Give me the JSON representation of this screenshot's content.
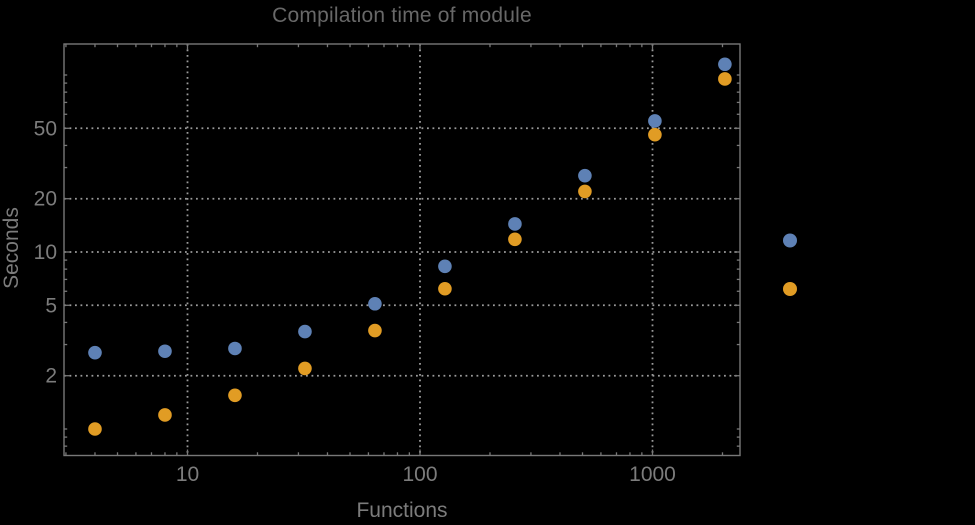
{
  "title": "Compilation time of module",
  "colors": {
    "background": "#000000",
    "title_text": "#686868",
    "axis_label_text": "#7c7c7c",
    "tick_label_text": "#7c7c7c",
    "frame": "#787878",
    "gridline": "#9b9b9b",
    "series_blue": "#5E81B5",
    "series_orange": "#E19C24"
  },
  "chart_data": {
    "type": "scatter",
    "title": "Compilation time of module",
    "xlabel": "Functions",
    "ylabel": "Seconds",
    "xscale": "log",
    "yscale": "log",
    "xlim": [
      2.9,
      2380
    ],
    "ylim": [
      0.72,
      150
    ],
    "grid": {
      "style": "dotted",
      "x_lines": [
        10,
        100,
        1000
      ],
      "y_lines": [
        2,
        5,
        10,
        20,
        50
      ]
    },
    "x_major_ticks": [
      10,
      100,
      1000
    ],
    "x_tick_labels": [
      "10",
      "100",
      "1000"
    ],
    "x_minor_ticks": [
      3,
      4,
      5,
      6,
      7,
      8,
      9,
      20,
      30,
      40,
      50,
      60,
      70,
      80,
      90,
      200,
      300,
      400,
      500,
      600,
      700,
      800,
      900,
      2000
    ],
    "y_major_ticks": [
      2,
      5,
      10,
      20,
      50
    ],
    "y_tick_labels": [
      "2",
      "5",
      "10",
      "20",
      "50"
    ],
    "y_minor_ticks": [
      0.8,
      0.9,
      1,
      3,
      4,
      6,
      7,
      8,
      9,
      30,
      40,
      60,
      70,
      80,
      90,
      100
    ],
    "x": [
      4,
      8,
      16,
      32,
      64,
      128,
      256,
      512,
      1024,
      2048
    ],
    "series": [
      {
        "name": "series-1-blue",
        "marker": "disk",
        "color": "#5E81B5",
        "values": [
          2.7,
          2.75,
          2.85,
          3.55,
          5.1,
          8.3,
          14.4,
          27,
          55,
          115
        ]
      },
      {
        "name": "series-2-orange",
        "marker": "disk",
        "color": "#E19C24",
        "values": [
          1.0,
          1.2,
          1.55,
          2.2,
          3.6,
          6.2,
          11.8,
          22,
          46,
          95
        ]
      }
    ],
    "legend": {
      "position": "outside-right",
      "labels_visible": false,
      "markers": [
        {
          "name": "legend-marker-blue",
          "color": "#5E81B5"
        },
        {
          "name": "legend-marker-orange",
          "color": "#E19C24"
        }
      ]
    }
  }
}
